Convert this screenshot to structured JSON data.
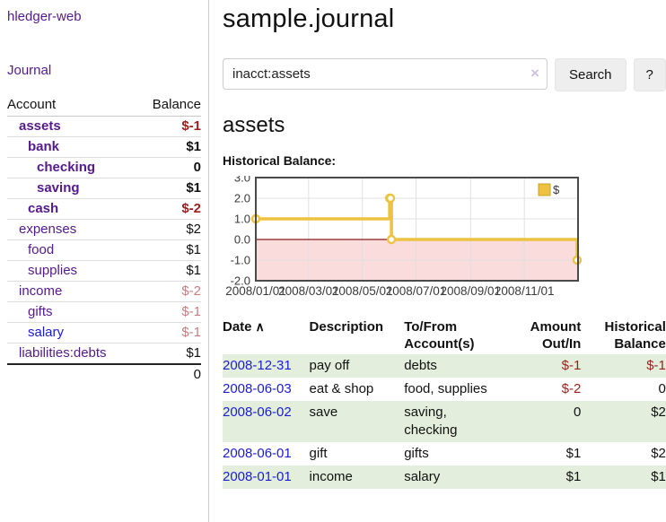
{
  "colors": {
    "purple_link": "#551a8b",
    "blue_link": "#1b1bd1",
    "negative_strong": "#9c1f1f",
    "negative_muted": "#c47f80",
    "row_stripe": "#e3efdc",
    "button_bg": "#eeeeee",
    "divider": "#cccccc",
    "chart_line": "#edc240",
    "chart_marker_fill": "#ffffff",
    "chart_negative_fill": "#fadcdc",
    "chart_zero_line": "#8b1a1a",
    "chart_grid": "#e0e0e0",
    "chart_border": "#4a4a4a"
  },
  "app": {
    "brand": "hledger-web",
    "nav_journal": "Journal"
  },
  "sidebar": {
    "accounts_header": {
      "account": "Account",
      "balance": "Balance"
    },
    "accounts": [
      {
        "name": "assets",
        "indent": 1,
        "bold": true,
        "balance": "$-1",
        "balance_class": "neg"
      },
      {
        "name": "bank",
        "indent": 2,
        "bold": true,
        "balance": "$1",
        "balance_class": "pos"
      },
      {
        "name": "checking",
        "indent": 3,
        "bold": true,
        "balance": "0",
        "balance_class": "pos"
      },
      {
        "name": "saving",
        "indent": 3,
        "bold": true,
        "balance": "$1",
        "balance_class": "pos"
      },
      {
        "name": "cash",
        "indent": 2,
        "bold": true,
        "balance": "$-2",
        "balance_class": "neg"
      },
      {
        "name": "expenses",
        "indent": 1,
        "bold": false,
        "balance": "$2",
        "balance_class": "pos"
      },
      {
        "name": "food",
        "indent": 2,
        "bold": false,
        "balance": "$1",
        "balance_class": "pos"
      },
      {
        "name": "supplies",
        "indent": 2,
        "bold": false,
        "balance": "$1",
        "balance_class": "pos"
      },
      {
        "name": "income",
        "indent": 1,
        "bold": false,
        "balance": "$-2",
        "balance_class": "neg-muted"
      },
      {
        "name": "gifts",
        "indent": 2,
        "bold": false,
        "balance": "$-1",
        "balance_class": "neg-muted"
      },
      {
        "name": "salary",
        "indent": 2,
        "bold": false,
        "balance": "$-1",
        "balance_class": "neg-muted",
        "link": "blue"
      },
      {
        "name": "liabilities:debts",
        "indent": 1,
        "bold": false,
        "balance": "$1",
        "balance_class": "pos"
      }
    ],
    "total": "0"
  },
  "header": {
    "title": "sample.journal"
  },
  "search": {
    "value": "inacct:assets",
    "clear_icon": "×",
    "button": "Search",
    "help_button": "?"
  },
  "account_page": {
    "title": "assets",
    "chart_label": "Historical Balance:"
  },
  "chart_data": {
    "type": "line",
    "step": true,
    "title": "Historical Balance",
    "legend": [
      {
        "label": "$",
        "color": "#edc240"
      }
    ],
    "legend_position": "top-right",
    "x_domain": [
      "2008/01/01",
      "2009/01/01"
    ],
    "xticks": [
      "2008/01/01",
      "2008/03/01",
      "2008/05/01",
      "2008/07/01",
      "2008/09/01",
      "2008/11/01"
    ],
    "yticks": [
      "3.0",
      "2.0",
      "1.0",
      "0.0",
      "-1.0",
      "-2.0"
    ],
    "ylim": [
      -2,
      3
    ],
    "grid": true,
    "negative_region_shaded": true,
    "series": [
      {
        "name": "$",
        "x": [
          "2008/01/01",
          "2008/06/01",
          "2008/06/02",
          "2008/06/03",
          "2008/12/31"
        ],
        "y": [
          1,
          2,
          2,
          0,
          -1
        ]
      }
    ]
  },
  "register": {
    "columns": [
      "Date",
      "Description",
      "To/From Account(s)",
      "Amount Out/In",
      "Historical Balance"
    ],
    "sort_icon": "∧",
    "rows": [
      {
        "date": "2008-12-31",
        "description": "pay off",
        "accounts": "debts",
        "amount": "$-1",
        "amount_class": "neg",
        "balance": "$-1",
        "balance_class": "neg"
      },
      {
        "date": "2008-06-03",
        "description": "eat & shop",
        "accounts": "food, supplies",
        "amount": "$-2",
        "amount_class": "neg",
        "balance": "0",
        "balance_class": "pos"
      },
      {
        "date": "2008-06-02",
        "description": "save",
        "accounts": "saving, checking",
        "amount": "0",
        "amount_class": "pos",
        "balance": "$2",
        "balance_class": "pos"
      },
      {
        "date": "2008-06-01",
        "description": "gift",
        "accounts": "gifts",
        "amount": "$1",
        "amount_class": "pos",
        "balance": "$2",
        "balance_class": "pos"
      },
      {
        "date": "2008-01-01",
        "description": "income",
        "accounts": "salary",
        "amount": "$1",
        "amount_class": "pos",
        "balance": "$1",
        "balance_class": "pos"
      }
    ]
  }
}
